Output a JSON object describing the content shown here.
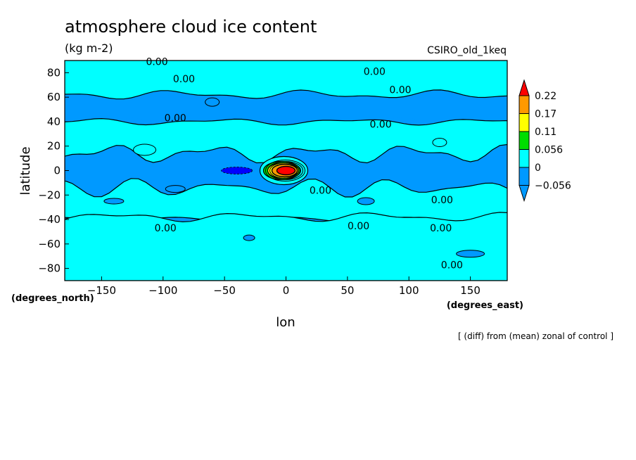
{
  "chart_data": {
    "type": "heatmap",
    "title": "atmosphere cloud ice content",
    "units": "(kg m-2)",
    "model": "CSIRO_old_1keq",
    "xlabel": "lon",
    "ylabel": "latitude",
    "x_units": "(degrees_east)",
    "y_units": "(degrees_north)",
    "note": "[ (diff) from (mean) zonal of control ]",
    "xlim": [
      -180,
      180
    ],
    "ylim": [
      -90,
      90
    ],
    "x_ticks": [
      -150,
      -100,
      -50,
      0,
      50,
      100,
      150
    ],
    "y_ticks": [
      -80,
      -60,
      -40,
      -20,
      0,
      20,
      40,
      60,
      80
    ],
    "contour_labels": [
      "0.00",
      "0.00",
      "0.00",
      "0.00",
      "0.00",
      "0.00",
      "0.00",
      "0.00",
      "0.00",
      "0.00",
      "0.00",
      "0.00"
    ],
    "colorbar": {
      "levels": [
        "0.22",
        "0.17",
        "0.11",
        "0.056",
        "0",
        "-0.056"
      ],
      "colors": [
        "#ff0000",
        "#ff9900",
        "#ffff00",
        "#00dd00",
        "#00ffff",
        "#0099ff",
        "#0000ff"
      ]
    },
    "regions": {
      "polar_north_lat": [
        62,
        90
      ],
      "band_north_lat": [
        40,
        62
      ],
      "tropics_lat": [
        -40,
        40
      ],
      "band_south_lat": [
        -90,
        -40
      ],
      "max_anomaly_lon": 0,
      "max_anomaly_lat": 0
    }
  }
}
